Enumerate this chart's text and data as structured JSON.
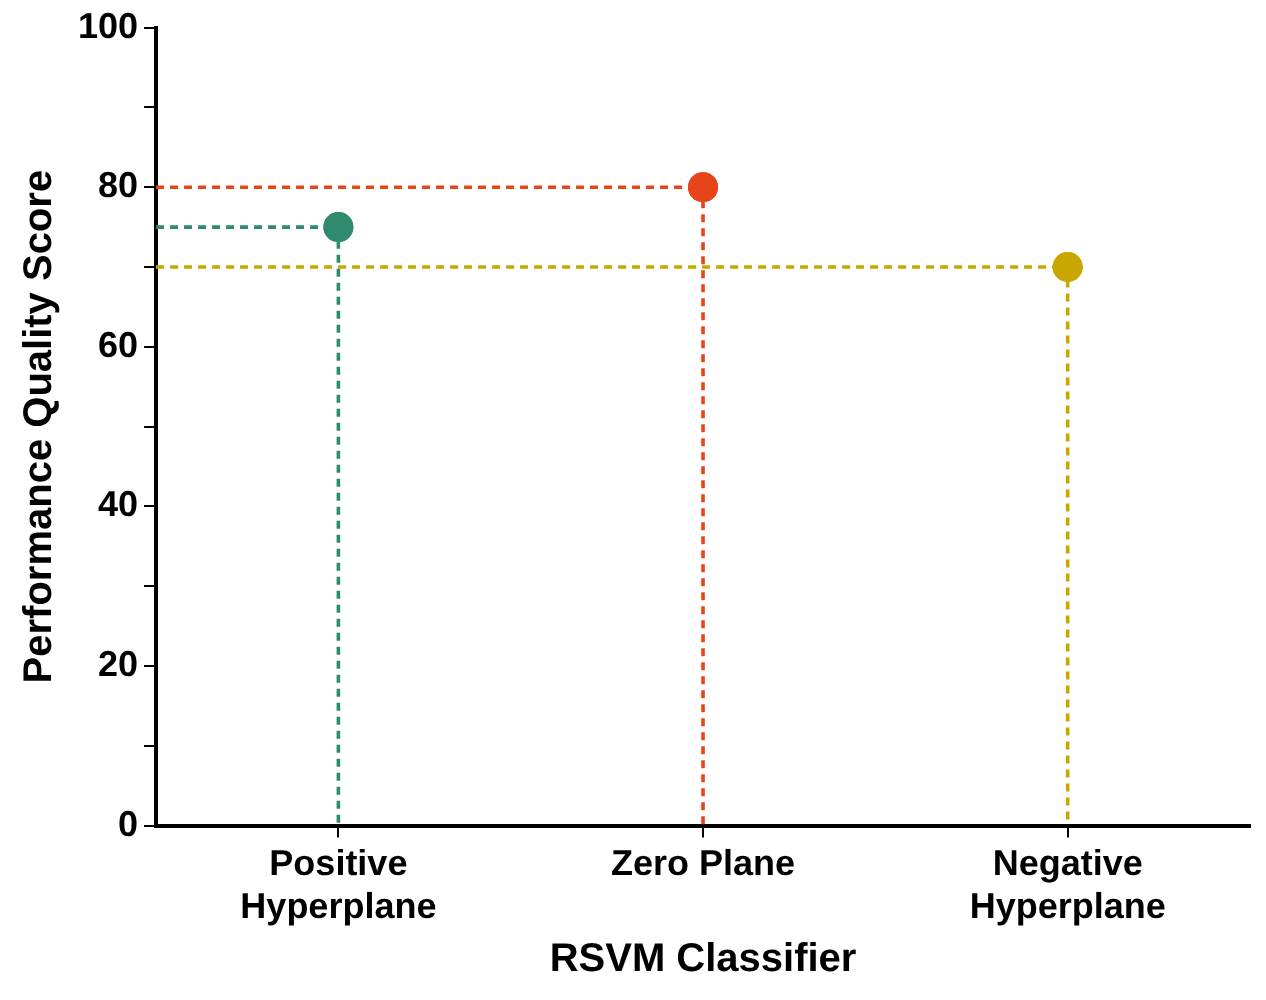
{
  "chart_data": {
    "type": "scatter",
    "xlabel": "RSVM Classifier",
    "ylabel": "Performance Quality Score",
    "categories": [
      "Positive Hyperplane",
      "Zero Plane",
      "Negative Hyperplane"
    ],
    "values": [
      75,
      80,
      70
    ],
    "colors": [
      "#2e8b6e",
      "#e8441a",
      "#c8a800"
    ],
    "ylim": [
      0,
      100
    ],
    "yticks": [
      0,
      {
        "value": 10,
        "label": null
      },
      20,
      {
        "value": 30,
        "label": null
      },
      40,
      {
        "value": 50,
        "label": null
      },
      60,
      {
        "value": 70,
        "label": null
      },
      80,
      {
        "value": 90,
        "label": null
      },
      100
    ],
    "grid": false,
    "marker": "circle",
    "line_style": "dashed"
  }
}
